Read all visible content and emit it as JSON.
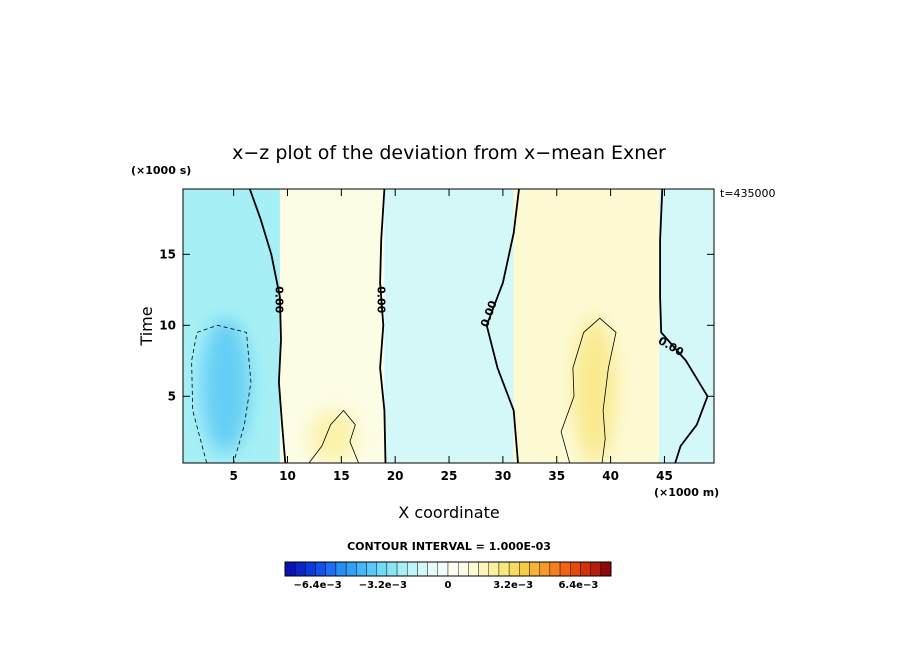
{
  "chart_data": {
    "type": "heatmap",
    "title": "x−z plot of the deviation from x−mean Exner",
    "xlabel": "X coordinate",
    "ylabel": "Time",
    "x_unit": "(×1000 m)",
    "y_unit": "(×1000 s)",
    "time_annotation": "t=435000",
    "xlim": [
      0.3,
      49.6
    ],
    "ylim": [
      0.3,
      19.6
    ],
    "x_ticks": [
      5,
      10,
      15,
      20,
      25,
      30,
      35,
      40,
      45
    ],
    "x_tick_labels": [
      "5",
      "10",
      "15",
      "20",
      "25",
      "30",
      "35",
      "40",
      "45"
    ],
    "y_ticks": [
      5,
      10,
      15
    ],
    "y_tick_labels": [
      "5",
      "10",
      "15"
    ],
    "contour_interval_text": "CONTOUR INTERVAL = 1.000E-03",
    "contour_interval": 0.001,
    "zero_contour_label": "0.00",
    "colorbar": {
      "min": -0.008,
      "max": 0.008,
      "tick_values": [
        -0.0064,
        -0.0032,
        0,
        0.0032,
        0.0064
      ],
      "tick_labels": [
        "−6.4e−3",
        "−3.2e−3",
        "0",
        "3.2e−3",
        "6.4e−3"
      ],
      "colors": [
        "#0a14b4",
        "#0a26c8",
        "#0a3cdc",
        "#1450f0",
        "#1e6ef5",
        "#288cf5",
        "#32a0f5",
        "#46b4f5",
        "#5ac8f5",
        "#6edcf5",
        "#8ae6f5",
        "#a6f0f5",
        "#bef5f5",
        "#d4f8f8",
        "#e6fafa",
        "#f4fdfd",
        "#fdfdf4",
        "#fdfde6",
        "#fdfad4",
        "#fcf6be",
        "#faf0a0",
        "#f8e882",
        "#f6dc64",
        "#f6cc46",
        "#f5b432",
        "#f59a28",
        "#f5801e",
        "#f06414",
        "#e64a0a",
        "#d2320a",
        "#b41e0a",
        "#8c0a0a"
      ]
    },
    "fields": {
      "regions": [
        {
          "kind": "negative",
          "x_range": [
            0.3,
            9.3
          ],
          "level": -0.0025
        },
        {
          "kind": "negative-core",
          "x_range": [
            2.0,
            6.5
          ],
          "y_range": [
            1.0,
            10.5
          ],
          "level": -0.004
        },
        {
          "kind": "positive",
          "x_range": [
            9.3,
            19.0
          ],
          "level": 0.0008
        },
        {
          "kind": "positive-core",
          "x_range": [
            12.0,
            16.5
          ],
          "y_range": [
            0.3,
            4.0
          ],
          "level": 0.002
        },
        {
          "kind": "negative",
          "x_range": [
            19.0,
            31.0
          ],
          "level": -0.0012
        },
        {
          "kind": "positive",
          "x_range": [
            31.0,
            44.5
          ],
          "level": 0.0012
        },
        {
          "kind": "positive-core",
          "x_range": [
            36.5,
            40.5
          ],
          "y_range": [
            0.3,
            10.5
          ],
          "level": 0.0025
        },
        {
          "kind": "negative",
          "x_range": [
            44.5,
            49.6
          ],
          "level": -0.0012
        }
      ],
      "zero_contours": [
        {
          "points": [
            [
              6.5,
              19.6
            ],
            [
              7.5,
              17.5
            ],
            [
              8.5,
              15.0
            ],
            [
              9.3,
              12.0
            ],
            [
              9.4,
              9.0
            ],
            [
              9.2,
              6.0
            ],
            [
              9.5,
              3.0
            ],
            [
              9.8,
              0.3
            ]
          ],
          "label_at": [
            9.2,
            11.8
          ]
        },
        {
          "points": [
            [
              19.0,
              19.6
            ],
            [
              18.7,
              16.0
            ],
            [
              18.6,
              13.0
            ],
            [
              18.9,
              10.0
            ],
            [
              18.6,
              7.0
            ],
            [
              19.0,
              4.0
            ],
            [
              19.1,
              0.3
            ]
          ],
          "label_at": [
            18.7,
            11.8
          ]
        },
        {
          "points": [
            [
              31.5,
              19.6
            ],
            [
              31.0,
              16.5
            ],
            [
              30.0,
              13.0
            ],
            [
              28.5,
              10.0
            ],
            [
              29.5,
              7.0
            ],
            [
              31.0,
              4.0
            ],
            [
              31.4,
              0.3
            ]
          ],
          "label_at": [
            28.7,
            10.8
          ]
        },
        {
          "points": [
            [
              44.8,
              19.6
            ],
            [
              44.6,
              16.0
            ],
            [
              44.6,
              12.0
            ],
            [
              44.7,
              9.5
            ],
            [
              47.0,
              7.5
            ],
            [
              49.0,
              5.0
            ],
            [
              48.0,
              3.0
            ],
            [
              46.5,
              1.5
            ],
            [
              46.0,
              0.3
            ]
          ],
          "label_at": [
            45.6,
            8.5
          ]
        }
      ],
      "dashed_contours": [
        {
          "points": [
            [
              2.5,
              0.3
            ],
            [
              1.2,
              4.0
            ],
            [
              1.1,
              7.5
            ],
            [
              1.6,
              9.5
            ],
            [
              3.5,
              10.0
            ],
            [
              6.2,
              9.5
            ],
            [
              6.6,
              6.0
            ],
            [
              6.0,
              3.0
            ],
            [
              5.0,
              0.3
            ]
          ],
          "level": -0.001
        }
      ],
      "thin_contours": [
        {
          "points": [
            [
              12.0,
              0.3
            ],
            [
              13.2,
              1.5
            ],
            [
              14.0,
              3.0
            ],
            [
              15.2,
              4.0
            ],
            [
              16.3,
              3.0
            ],
            [
              15.8,
              1.8
            ],
            [
              16.6,
              0.3
            ]
          ],
          "level": 0.001
        },
        {
          "points": [
            [
              36.2,
              0.3
            ],
            [
              35.4,
              2.5
            ],
            [
              36.6,
              5.0
            ],
            [
              36.5,
              7.0
            ],
            [
              37.5,
              9.5
            ],
            [
              39.0,
              10.5
            ],
            [
              40.5,
              9.5
            ],
            [
              39.8,
              7.0
            ],
            [
              39.3,
              4.0
            ],
            [
              39.5,
              2.0
            ],
            [
              39.2,
              0.3
            ]
          ],
          "level": 0.001
        }
      ]
    }
  }
}
